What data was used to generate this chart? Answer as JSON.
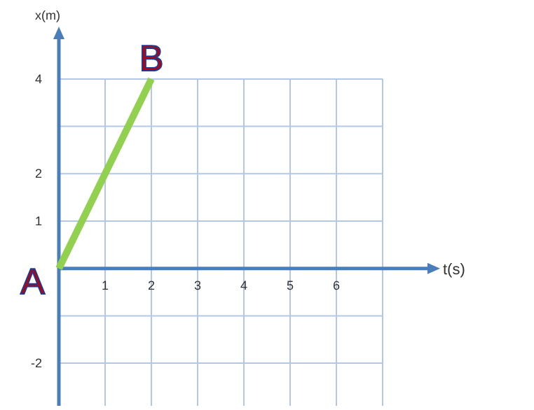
{
  "chart_data": {
    "type": "line",
    "xlabel": "t(s)",
    "ylabel": "x(m)",
    "x": [
      0,
      2
    ],
    "series": [
      {
        "color": "#92d050",
        "values": [
          0,
          4
        ]
      }
    ],
    "xlim": [
      0,
      8
    ],
    "xticks": [
      1,
      2,
      3,
      4,
      5,
      6,
      {
        "value": 7,
        "label": null
      }
    ],
    "ylim": [
      -2.9,
      4.9
    ],
    "yticks": [
      {
        "value": -1,
        "label": null
      },
      -2,
      1,
      2,
      {
        "value": 3,
        "label": null
      },
      4
    ],
    "grid": true,
    "line_style": "solid",
    "marker": "none",
    "annotations": [
      {
        "text": "A",
        "x": 0,
        "y": 0
      },
      {
        "text": "B",
        "x": 2,
        "y": 4
      }
    ]
  }
}
